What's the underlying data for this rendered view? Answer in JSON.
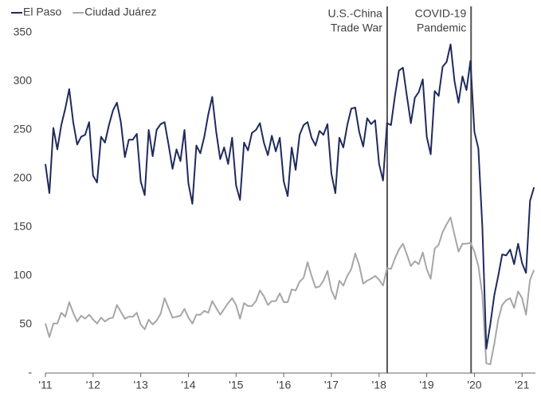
{
  "chart_data": {
    "type": "line",
    "xlim": [
      2011,
      2021.28
    ],
    "ylim": [
      0,
      350
    ],
    "yticks": [
      {
        "value": 0,
        "label": "-"
      },
      50,
      100,
      150,
      200,
      250,
      300,
      350
    ],
    "xticks": [
      {
        "value": 2011,
        "label": "'11"
      },
      {
        "value": 2012,
        "label": "'12"
      },
      {
        "value": 2013,
        "label": "'13"
      },
      {
        "value": 2014,
        "label": "'14"
      },
      {
        "value": 2015,
        "label": "'15"
      },
      {
        "value": 2016,
        "label": "'16"
      },
      {
        "value": 2017,
        "label": "'17"
      },
      {
        "value": 2018,
        "label": "'18"
      },
      {
        "value": 2019,
        "label": "'19"
      },
      {
        "value": 2020,
        "label": "'20"
      },
      {
        "value": 2021,
        "label": "'21"
      }
    ],
    "x": [
      2011,
      2011.083,
      2011.167,
      2011.25,
      2011.333,
      2011.417,
      2011.5,
      2011.583,
      2011.667,
      2011.75,
      2011.833,
      2011.917,
      2012,
      2012.083,
      2012.167,
      2012.25,
      2012.333,
      2012.417,
      2012.5,
      2012.583,
      2012.667,
      2012.75,
      2012.833,
      2012.917,
      2013,
      2013.083,
      2013.167,
      2013.25,
      2013.333,
      2013.417,
      2013.5,
      2013.583,
      2013.667,
      2013.75,
      2013.833,
      2013.917,
      2014,
      2014.083,
      2014.167,
      2014.25,
      2014.333,
      2014.417,
      2014.5,
      2014.583,
      2014.667,
      2014.75,
      2014.833,
      2014.917,
      2015,
      2015.083,
      2015.167,
      2015.25,
      2015.333,
      2015.417,
      2015.5,
      2015.583,
      2015.667,
      2015.75,
      2015.833,
      2015.917,
      2016,
      2016.083,
      2016.167,
      2016.25,
      2016.333,
      2016.417,
      2016.5,
      2016.583,
      2016.667,
      2016.75,
      2016.833,
      2016.917,
      2017,
      2017.083,
      2017.167,
      2017.25,
      2017.333,
      2017.417,
      2017.5,
      2017.583,
      2017.667,
      2017.75,
      2017.833,
      2017.917,
      2018,
      2018.083,
      2018.167,
      2018.25,
      2018.333,
      2018.417,
      2018.5,
      2018.583,
      2018.667,
      2018.75,
      2018.833,
      2018.917,
      2019,
      2019.083,
      2019.167,
      2019.25,
      2019.333,
      2019.417,
      2019.5,
      2019.583,
      2019.667,
      2019.75,
      2019.833,
      2019.917,
      2020,
      2020.083,
      2020.167,
      2020.25,
      2020.333,
      2020.417,
      2020.5,
      2020.583,
      2020.667,
      2020.75,
      2020.833,
      2020.917,
      2021,
      2021.083,
      2021.167,
      2021.25
    ],
    "series": [
      {
        "name": "El Paso",
        "color": "#1f2a5c",
        "values": [
          215,
          185,
          252,
          230,
          255,
          272,
          292,
          258,
          235,
          243,
          245,
          258,
          203,
          196,
          243,
          237,
          255,
          270,
          278,
          258,
          222,
          240,
          240,
          246,
          197,
          183,
          250,
          223,
          250,
          256,
          258,
          235,
          210,
          230,
          218,
          250,
          195,
          174,
          234,
          226,
          243,
          266,
          284,
          248,
          220,
          232,
          215,
          242,
          193,
          178,
          237,
          229,
          247,
          250,
          257,
          237,
          224,
          244,
          228,
          242,
          197,
          182,
          232,
          209,
          245,
          255,
          258,
          242,
          234,
          249,
          245,
          256,
          205,
          185,
          242,
          232,
          255,
          272,
          273,
          248,
          233,
          262,
          256,
          260,
          215,
          198,
          257,
          255,
          285,
          311,
          314,
          285,
          257,
          283,
          289,
          302,
          243,
          225,
          290,
          285,
          315,
          320,
          338,
          300,
          278,
          305,
          291,
          321,
          248,
          231,
          150,
          25,
          50,
          80,
          100,
          122,
          121,
          127,
          112,
          133,
          113,
          103,
          177,
          191
        ]
      },
      {
        "name": "Ciudad Juárez",
        "color": "#a6a6a6",
        "values": [
          51,
          37,
          51,
          51,
          62,
          58,
          73,
          62,
          53,
          59,
          56,
          60,
          55,
          51,
          57,
          53,
          56,
          57,
          70,
          63,
          56,
          58,
          58,
          62,
          50,
          45,
          55,
          50,
          54,
          61,
          77,
          67,
          57,
          58,
          59,
          66,
          57,
          51,
          60,
          60,
          64,
          62,
          74,
          67,
          60,
          66,
          72,
          77,
          70,
          56,
          72,
          69,
          69,
          74,
          85,
          79,
          70,
          74,
          74,
          82,
          73,
          73,
          86,
          85,
          94,
          98,
          114,
          100,
          88,
          89,
          95,
          105,
          85,
          76,
          95,
          90,
          100,
          107,
          123,
          111,
          92,
          95,
          97,
          100,
          96,
          90,
          108,
          107,
          118,
          127,
          133,
          122,
          110,
          115,
          112,
          124,
          107,
          97,
          128,
          132,
          145,
          153,
          160,
          142,
          125,
          133,
          133,
          134,
          125,
          110,
          80,
          10,
          9,
          30,
          55,
          70,
          75,
          77,
          67,
          84,
          77,
          60,
          96,
          106
        ]
      }
    ],
    "annotations": [
      {
        "x": 2018.17,
        "text": [
          "U.S.-China",
          "Trade War"
        ]
      },
      {
        "x": 2019.93,
        "text": [
          "COVID-19",
          "Pandemic"
        ]
      }
    ],
    "legend": "top-left"
  }
}
